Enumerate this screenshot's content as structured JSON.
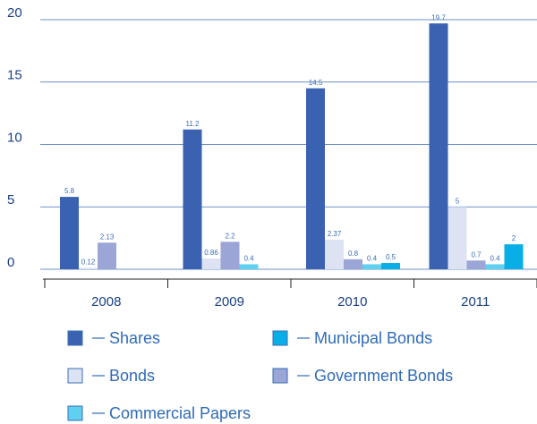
{
  "chart_data": {
    "type": "bar",
    "categories": [
      "2008",
      "2009",
      "2010",
      "2011"
    ],
    "series": [
      {
        "name": "Shares",
        "color": "#3a62b0",
        "values": [
          5.8,
          11.2,
          14.5,
          19.7
        ]
      },
      {
        "name": "Bonds",
        "color": "#dde3f3",
        "values": [
          0.12,
          0.86,
          2.37,
          5
        ]
      },
      {
        "name": "Government Bonds",
        "color": "#9ba6d6",
        "values": [
          2.13,
          2.2,
          0.8,
          0.7
        ]
      },
      {
        "name": "Commercial Papers",
        "color": "#5fd0ef",
        "values": [
          null,
          0.4,
          0.4,
          0.4
        ]
      },
      {
        "name": "Municipal Bonds",
        "color": "#0aaee6",
        "values": [
          null,
          null,
          0.5,
          2
        ]
      }
    ],
    "ylim": [
      0,
      20
    ],
    "yticks": [
      0,
      5,
      10,
      15,
      20
    ],
    "grid": true
  }
}
